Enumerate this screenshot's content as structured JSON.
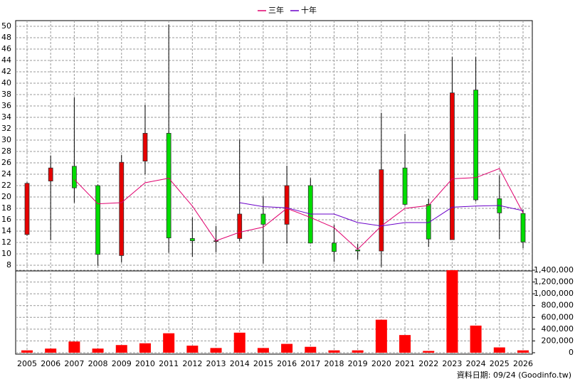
{
  "chart_data": {
    "type": "candlestick",
    "categories": [
      "2005",
      "2006",
      "2007",
      "2008",
      "2009",
      "2010",
      "2011",
      "2012",
      "2013",
      "2014",
      "2015",
      "2016",
      "2017",
      "2018",
      "2019",
      "2020",
      "2021",
      "2022",
      "2023",
      "2024",
      "2025",
      "2026"
    ],
    "open": [
      13.4,
      22.8,
      25.4,
      22.0,
      9.7,
      26.3,
      31.2,
      12.7,
      12.3,
      12.7,
      17.0,
      15.2,
      22.0,
      11.9,
      10.7,
      10.5,
      25.1,
      18.7,
      12.5,
      38.8,
      19.7,
      17.1
    ],
    "high": [
      22.6,
      27.3,
      37.5,
      22.2,
      27.4,
      36.2,
      50.3,
      16.4,
      14.9,
      30.1,
      20.1,
      25.5,
      23.3,
      15.1,
      11.8,
      34.8,
      31.1,
      19.7,
      44.6,
      44.6,
      23.8,
      17.8
    ],
    "low": [
      13.2,
      12.4,
      19.0,
      7.9,
      8.5,
      24.0,
      10.2,
      9.5,
      10.3,
      12.2,
      8.3,
      11.8,
      11.8,
      8.6,
      9.0,
      7.7,
      18.5,
      11.2,
      12.5,
      19.2,
      12.6,
      11.0
    ],
    "close": [
      22.4,
      25.1,
      21.6,
      9.9,
      26.1,
      31.2,
      12.8,
      12.3,
      12.3,
      17.0,
      15.2,
      22.0,
      11.9,
      10.4,
      10.5,
      24.8,
      18.7,
      12.6,
      38.3,
      19.5,
      17.2,
      12.1
    ],
    "up_color": "#e60000",
    "down_color": "#00dd00",
    "series": [
      {
        "name": "三年",
        "color": "#e0006e",
        "values": [
          null,
          null,
          23.1,
          18.8,
          19.0,
          22.5,
          23.3,
          18.4,
          12.3,
          13.8,
          14.7,
          18.0,
          16.4,
          14.6,
          10.8,
          14.9,
          18.0,
          18.5,
          23.2,
          23.4,
          25.0,
          17.2
        ]
      },
      {
        "name": "十年",
        "color": "#6a00c8",
        "values": [
          null,
          null,
          null,
          null,
          null,
          null,
          null,
          null,
          null,
          19.0,
          18.3,
          18.1,
          17.0,
          17.0,
          15.5,
          14.9,
          15.5,
          15.5,
          18.2,
          18.4,
          18.5,
          17.6
        ]
      }
    ],
    "ylim": [
      7,
      51
    ],
    "yticks": [
      8,
      10,
      12,
      14,
      16,
      18,
      20,
      22,
      24,
      26,
      28,
      30,
      32,
      34,
      36,
      38,
      40,
      42,
      44,
      46,
      48,
      50
    ],
    "grid": true,
    "volume": {
      "color": "#ff0000",
      "values": [
        40000,
        70000,
        190000,
        70000,
        130000,
        160000,
        330000,
        120000,
        80000,
        340000,
        80000,
        150000,
        100000,
        40000,
        40000,
        560000,
        300000,
        30000,
        1400000,
        460000,
        90000,
        40000
      ],
      "ylim": [
        0,
        1400000
      ],
      "yticks": [
        0,
        {
          "value": 200000,
          "label": "200,000"
        },
        {
          "value": 400000,
          "label": "400,000"
        },
        {
          "value": 600000,
          "label": "600,000"
        },
        {
          "value": 800000,
          "label": "800,000"
        },
        {
          "value": 1000000,
          "label": "1,000,000"
        },
        {
          "value": 1200000,
          "label": "1,200,000"
        },
        {
          "value": 1400000,
          "label": "1,400,000"
        }
      ]
    },
    "source": "資料日期: 09/24  (Goodinfo.tw)"
  }
}
